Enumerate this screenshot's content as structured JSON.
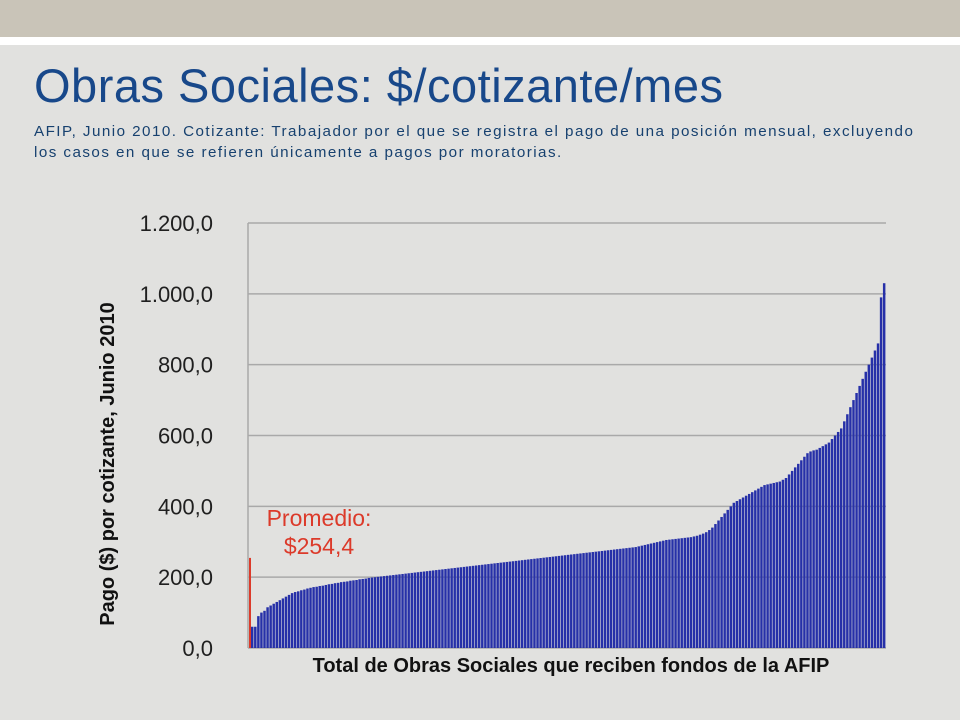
{
  "slide": {
    "title": "Obras Sociales: $/cotizante/mes",
    "subtitle": "AFIP, Junio 2010. Cotizante: Trabajador por el que se registra el pago de una posición mensual, excluyendo los casos en que se refieren únicamente a pagos por moratorias."
  },
  "colors": {
    "title": "#18488a",
    "bars": "#2630a8",
    "bar_edge": "#1c2488",
    "average": "#dc3a2a",
    "grid": "#a9a9a9",
    "background": "#e1e1df"
  },
  "chart_data": {
    "type": "bar",
    "xlabel": "Total de Obras Sociales que reciben fondos de la AFIP",
    "ylabel": "Pago ($) por cotizante, Junio 2010",
    "ylim": [
      0,
      1200
    ],
    "yticks": [
      {
        "value": 0,
        "label": "0,0"
      },
      {
        "value": 200,
        "label": "200,0"
      },
      {
        "value": 400,
        "label": "400,0"
      },
      {
        "value": 600,
        "label": "600,0"
      },
      {
        "value": 800,
        "label": "800,0"
      },
      {
        "value": 1000,
        "label": "1.000,0"
      },
      {
        "value": 1200,
        "label": "1.200,0"
      }
    ],
    "grid": true,
    "sorted_ascending": true,
    "average": {
      "value": 254.4,
      "label_line1": "Promedio:",
      "label_line2": "$254,4"
    },
    "values": [
      60,
      60,
      90,
      100,
      105,
      115,
      120,
      125,
      130,
      135,
      140,
      145,
      150,
      155,
      158,
      160,
      163,
      165,
      168,
      170,
      172,
      173,
      175,
      176,
      178,
      180,
      181,
      183,
      184,
      186,
      187,
      188,
      190,
      191,
      192,
      194,
      195,
      196,
      198,
      199,
      200,
      201,
      202,
      203,
      204,
      205,
      206,
      207,
      208,
      209,
      210,
      211,
      212,
      213,
      214,
      215,
      216,
      217,
      218,
      219,
      220,
      221,
      222,
      223,
      224,
      225,
      226,
      227,
      228,
      229,
      230,
      231,
      232,
      233,
      234,
      235,
      236,
      237,
      238,
      239,
      240,
      241,
      242,
      243,
      244,
      245,
      246,
      247,
      248,
      249,
      250,
      251,
      252,
      253,
      254,
      255,
      256,
      257,
      258,
      259,
      260,
      261,
      262,
      263,
      264,
      265,
      266,
      267,
      268,
      269,
      270,
      271,
      272,
      273,
      274,
      275,
      276,
      277,
      278,
      279,
      280,
      281,
      282,
      283,
      284,
      285,
      287,
      289,
      291,
      293,
      295,
      297,
      299,
      301,
      303,
      305,
      306,
      307,
      308,
      309,
      310,
      311,
      312,
      313,
      315,
      317,
      320,
      323,
      327,
      333,
      340,
      350,
      360,
      370,
      380,
      390,
      400,
      410,
      415,
      420,
      425,
      430,
      435,
      440,
      445,
      450,
      455,
      460,
      462,
      464,
      466,
      468,
      470,
      475,
      480,
      490,
      500,
      510,
      520,
      530,
      540,
      550,
      555,
      558,
      560,
      565,
      570,
      575,
      580,
      590,
      600,
      610,
      620,
      640,
      660,
      680,
      700,
      720,
      740,
      760,
      780,
      800,
      820,
      840,
      860,
      990,
      1030
    ]
  }
}
